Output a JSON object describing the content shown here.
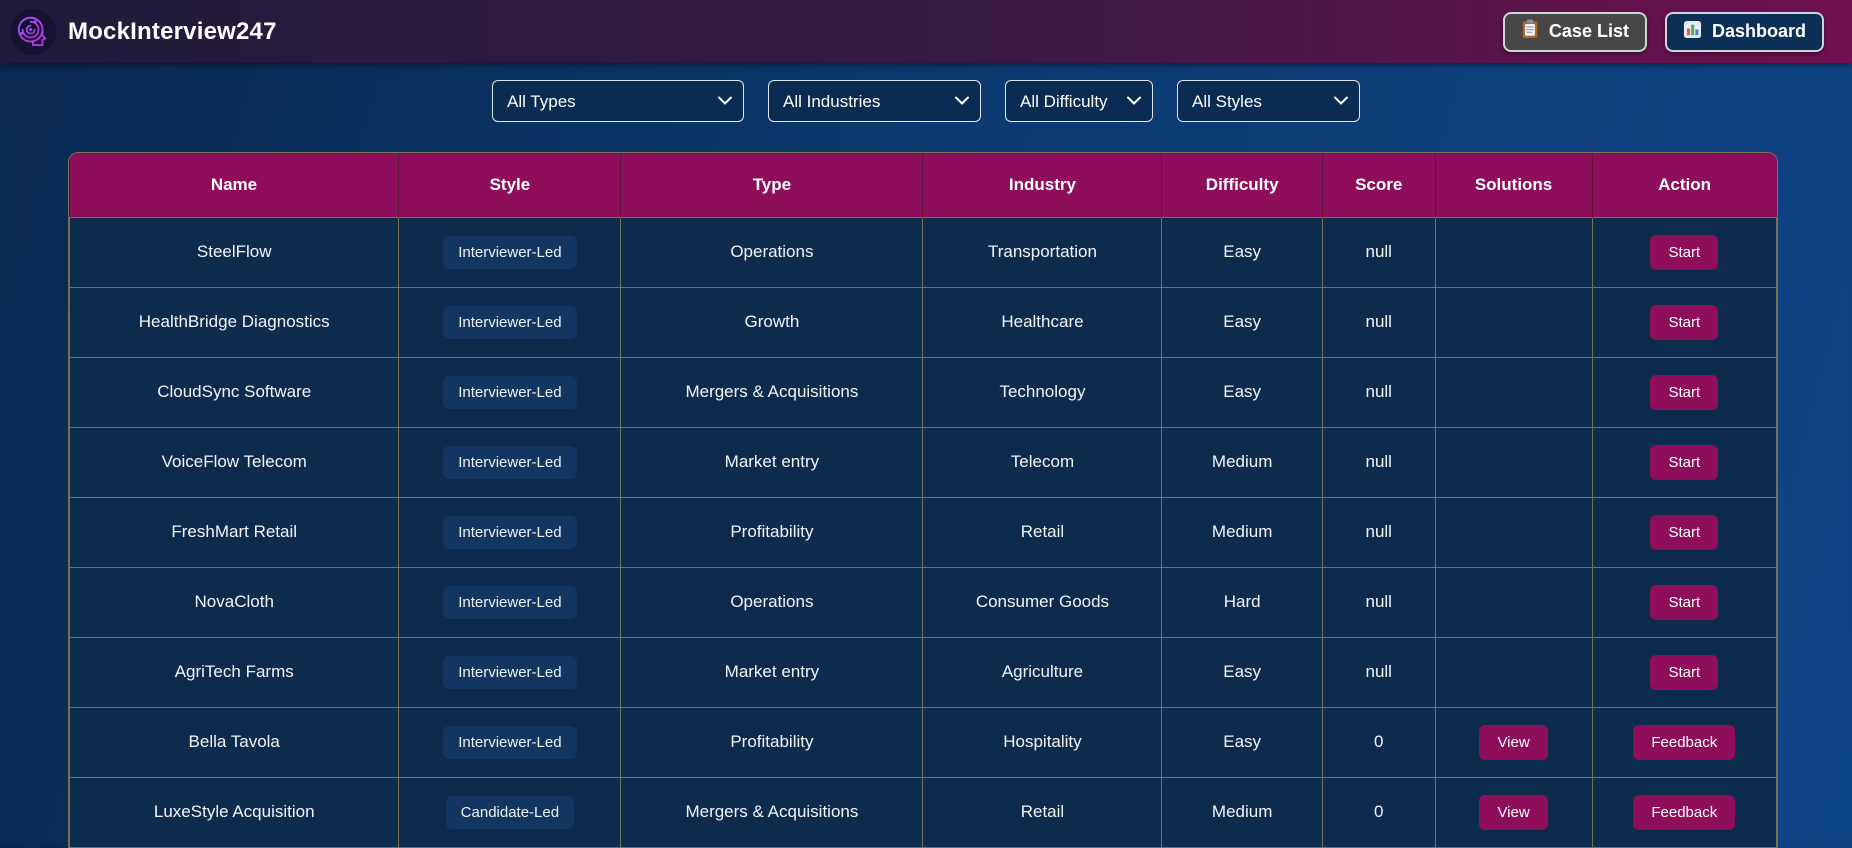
{
  "header": {
    "title": "MockInterview247",
    "case_list_label": "Case List",
    "dashboard_label": "Dashboard"
  },
  "icons": {
    "logo": "brain-maze-icon",
    "case_list": "clipboard-icon",
    "dashboard": "bar-chart-icon",
    "select_arrow": "chevron-down-icon"
  },
  "filters": {
    "types": {
      "value": "All Types"
    },
    "industries": {
      "value": "All Industries"
    },
    "difficulty": {
      "value": "All Difficulty"
    },
    "styles": {
      "value": "All Styles"
    }
  },
  "table": {
    "columns": [
      "Name",
      "Style",
      "Type",
      "Industry",
      "Difficulty",
      "Score",
      "Solutions",
      "Action"
    ],
    "rows": [
      {
        "name": "SteelFlow",
        "style": "Interviewer-Led",
        "type": "Operations",
        "industry": "Transportation",
        "difficulty": "Easy",
        "score": "null",
        "solutions_button": null,
        "action_button": "Start"
      },
      {
        "name": "HealthBridge Diagnostics",
        "style": "Interviewer-Led",
        "type": "Growth",
        "industry": "Healthcare",
        "difficulty": "Easy",
        "score": "null",
        "solutions_button": null,
        "action_button": "Start"
      },
      {
        "name": "CloudSync Software",
        "style": "Interviewer-Led",
        "type": "Mergers & Acquisitions",
        "industry": "Technology",
        "difficulty": "Easy",
        "score": "null",
        "solutions_button": null,
        "action_button": "Start"
      },
      {
        "name": "VoiceFlow Telecom",
        "style": "Interviewer-Led",
        "type": "Market entry",
        "industry": "Telecom",
        "difficulty": "Medium",
        "score": "null",
        "solutions_button": null,
        "action_button": "Start"
      },
      {
        "name": "FreshMart Retail",
        "style": "Interviewer-Led",
        "type": "Profitability",
        "industry": "Retail",
        "difficulty": "Medium",
        "score": "null",
        "solutions_button": null,
        "action_button": "Start"
      },
      {
        "name": "NovaCloth",
        "style": "Interviewer-Led",
        "type": "Operations",
        "industry": "Consumer Goods",
        "difficulty": "Hard",
        "score": "null",
        "solutions_button": null,
        "action_button": "Start"
      },
      {
        "name": "AgriTech Farms",
        "style": "Interviewer-Led",
        "type": "Market entry",
        "industry": "Agriculture",
        "difficulty": "Easy",
        "score": "null",
        "solutions_button": null,
        "action_button": "Start"
      },
      {
        "name": "Bella Tavola",
        "style": "Interviewer-Led",
        "type": "Profitability",
        "industry": "Hospitality",
        "difficulty": "Easy",
        "score": "0",
        "solutions_button": "View",
        "action_button": "Feedback"
      },
      {
        "name": "LuxeStyle Acquisition",
        "style": "Candidate-Led",
        "type": "Mergers & Acquisitions",
        "industry": "Retail",
        "difficulty": "Medium",
        "score": "0",
        "solutions_button": "View",
        "action_button": "Feedback"
      }
    ]
  },
  "colors": {
    "accent_magenta": "#8E0E5C",
    "row_navy": "#0D2B4D",
    "badge_navy": "#123660",
    "grid_line": "#76725A",
    "header_gradient_left": "#1E1B3A",
    "header_gradient_right": "#70104E",
    "page_gradient_left": "#0A2950",
    "page_gradient_right": "#0E4587",
    "button_gray": "#474747",
    "button_navy": "#0C2F55"
  }
}
